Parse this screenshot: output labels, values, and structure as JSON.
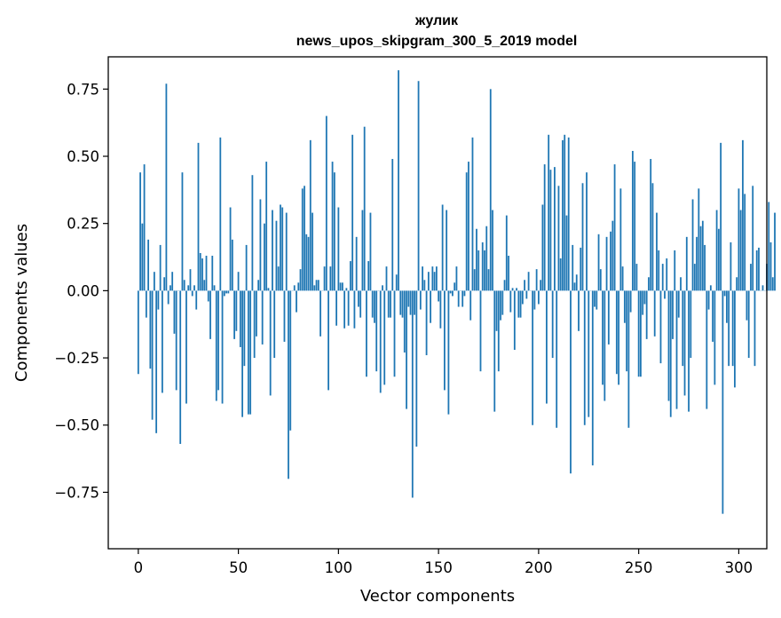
{
  "chart_data": {
    "type": "bar",
    "title_line1": "жулик",
    "title_line2": "news_upos_skipgram_300_5_2019 model",
    "xlabel": "Vector components",
    "ylabel": "Components values",
    "xlim": [
      -15,
      314
    ],
    "ylim": [
      -0.96,
      0.87
    ],
    "xticks": [
      0,
      50,
      100,
      150,
      200,
      250,
      300
    ],
    "xtick_labels": [
      "0",
      "50",
      "100",
      "150",
      "200",
      "250",
      "300"
    ],
    "yticks": [
      -0.75,
      -0.5,
      -0.25,
      0.0,
      0.25,
      0.5,
      0.75
    ],
    "ytick_labels": [
      "−0.75",
      "−0.50",
      "−0.25",
      "0.00",
      "0.25",
      "0.50",
      "0.75"
    ],
    "color": "#1f77b4",
    "values": [
      -0.31,
      0.44,
      0.25,
      0.47,
      -0.1,
      0.19,
      -0.29,
      -0.48,
      0.07,
      -0.53,
      -0.07,
      0.17,
      -0.38,
      0.05,
      0.77,
      -0.05,
      0.02,
      0.07,
      -0.16,
      -0.37,
      0.0,
      -0.57,
      0.44,
      0.04,
      -0.42,
      0.02,
      0.08,
      -0.02,
      0.02,
      -0.07,
      0.55,
      0.14,
      0.12,
      0.04,
      0.13,
      -0.04,
      -0.18,
      0.13,
      0.02,
      -0.41,
      -0.37,
      0.57,
      -0.42,
      -0.02,
      -0.01,
      -0.01,
      0.31,
      0.19,
      -0.18,
      -0.15,
      0.07,
      -0.21,
      -0.47,
      -0.28,
      0.17,
      -0.46,
      -0.46,
      0.43,
      -0.25,
      -0.17,
      0.04,
      0.34,
      -0.2,
      0.25,
      0.48,
      0.01,
      -0.39,
      0.3,
      -0.25,
      0.26,
      0.09,
      0.32,
      0.31,
      -0.19,
      0.29,
      -0.7,
      -0.52,
      0.0,
      0.02,
      -0.08,
      0.03,
      0.08,
      0.38,
      0.39,
      0.21,
      0.2,
      0.56,
      0.29,
      0.02,
      0.04,
      0.04,
      -0.17,
      0.0,
      0.09,
      0.65,
      -0.37,
      0.09,
      0.48,
      0.44,
      -0.13,
      0.31,
      0.03,
      0.03,
      -0.14,
      0.01,
      -0.13,
      0.11,
      0.58,
      -0.14,
      0.2,
      -0.06,
      -0.1,
      0.3,
      0.61,
      -0.32,
      0.11,
      0.29,
      -0.1,
      -0.12,
      -0.3,
      0.0,
      -0.38,
      0.02,
      -0.35,
      0.09,
      -0.1,
      -0.1,
      0.49,
      -0.32,
      0.06,
      0.82,
      -0.09,
      -0.1,
      -0.23,
      -0.44,
      -0.06,
      -0.09,
      -0.77,
      -0.09,
      -0.58,
      0.78,
      -0.07,
      0.09,
      0.04,
      -0.24,
      0.07,
      -0.12,
      0.09,
      0.07,
      0.09,
      -0.04,
      -0.14,
      0.32,
      -0.37,
      0.3,
      -0.46,
      -0.01,
      -0.02,
      0.03,
      0.09,
      -0.06,
      0.0,
      -0.06,
      -0.02,
      0.44,
      0.48,
      -0.11,
      0.57,
      0.08,
      0.23,
      0.15,
      -0.3,
      0.18,
      0.15,
      0.24,
      0.08,
      0.75,
      0.3,
      -0.45,
      -0.15,
      -0.3,
      -0.11,
      -0.09,
      0.04,
      0.28,
      0.13,
      -0.08,
      0.01,
      -0.22,
      0.01,
      -0.1,
      -0.1,
      -0.05,
      0.04,
      -0.03,
      0.07,
      0.0,
      -0.5,
      -0.07,
      0.08,
      -0.05,
      0.04,
      0.32,
      0.47,
      -0.42,
      0.58,
      0.45,
      -0.25,
      0.46,
      -0.51,
      0.39,
      0.12,
      0.56,
      0.58,
      0.28,
      0.57,
      -0.68,
      0.17,
      0.03,
      0.06,
      -0.15,
      0.16,
      0.4,
      -0.5,
      0.44,
      -0.47,
      0.0,
      -0.65,
      -0.06,
      -0.07,
      0.21,
      0.08,
      -0.35,
      -0.41,
      0.2,
      -0.2,
      0.22,
      0.26,
      0.47,
      -0.31,
      -0.35,
      0.38,
      0.09,
      -0.12,
      -0.3,
      -0.51,
      -0.08,
      0.52,
      0.48,
      0.1,
      -0.32,
      -0.32,
      -0.09,
      -0.05,
      -0.18,
      0.05,
      0.49,
      0.4,
      -0.17,
      0.29,
      0.15,
      -0.27,
      0.1,
      -0.03,
      0.12,
      -0.41,
      -0.47,
      -0.18,
      0.15,
      -0.44,
      -0.1,
      0.05,
      -0.28,
      -0.39,
      0.2,
      -0.45,
      -0.25,
      0.34,
      0.1,
      0.2,
      0.38,
      0.24,
      0.26,
      0.17,
      -0.44,
      -0.07,
      0.02,
      -0.19,
      -0.35,
      0.3,
      0.23,
      0.55,
      -0.83,
      -0.02,
      -0.12,
      -0.28,
      0.18,
      -0.28,
      -0.36,
      0.05,
      0.38,
      0.3,
      0.56,
      0.36,
      -0.11,
      -0.25,
      0.1,
      0.39,
      -0.28,
      0.15,
      0.16,
      0.0,
      0.02,
      0.0,
      0.1,
      0.33,
      0.18,
      0.05,
      0.29
    ]
  }
}
